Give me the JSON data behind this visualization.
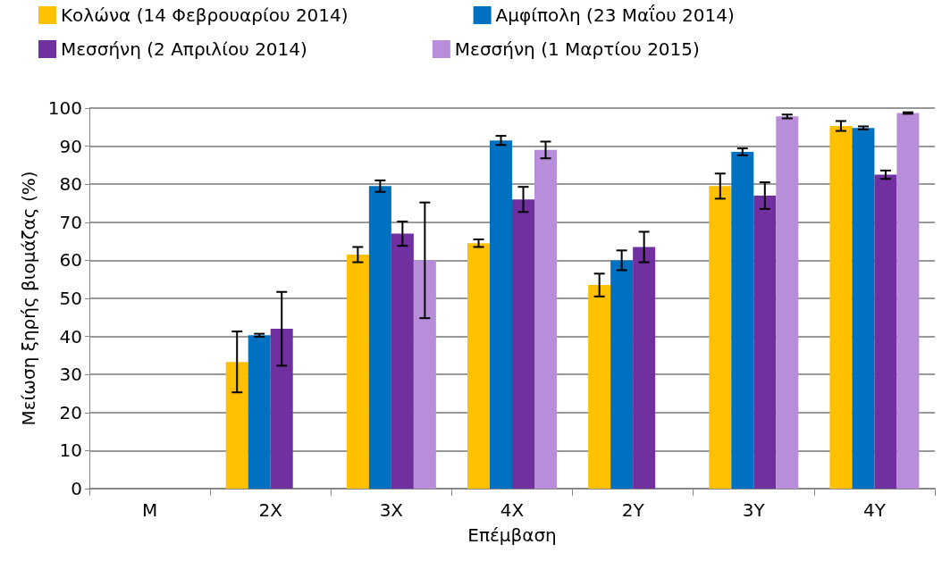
{
  "chart_data": {
    "type": "bar",
    "xlabel": "Επέμβαση",
    "ylabel": "Μείωση ξηρής βιομάζας (%)",
    "categories": [
      "M",
      "2X",
      "3X",
      "4X",
      "2Y",
      "3Y",
      "4Y"
    ],
    "series": [
      {
        "name": "Κολώνα (14 Φεβρουαρίου 2014)",
        "color": "#ffc000",
        "values": [
          null,
          33.3,
          61.5,
          64.5,
          53.5,
          79.5,
          95.3
        ],
        "errors": [
          null,
          8,
          2,
          1,
          3,
          3.3,
          1.3
        ]
      },
      {
        "name": "Αμφίπολη (23 Μαΐου 2014)",
        "color": "#0070c0",
        "values": [
          null,
          40.3,
          79.5,
          91.5,
          60,
          88.5,
          94.8
        ],
        "errors": [
          null,
          0.4,
          1.5,
          1.2,
          2.6,
          0.9,
          0.4
        ]
      },
      {
        "name": "Μεσσήνη (2 Απριλίου 2014)",
        "color": "#7030a0",
        "values": [
          null,
          42,
          67,
          76,
          63.5,
          77,
          82.5
        ],
        "errors": [
          null,
          9.7,
          3.2,
          3.3,
          4,
          3.5,
          1.1
        ]
      },
      {
        "name": "Μεσσήνη (1 Μαρτίου 2015)",
        "color": "#b88dda",
        "values": [
          null,
          null,
          60,
          89,
          null,
          97.8,
          98.7
        ],
        "errors": [
          null,
          null,
          15.2,
          2.2,
          null,
          0.5,
          0.2
        ]
      }
    ],
    "ylim": [
      0,
      100
    ],
    "yticks": [
      0,
      10,
      20,
      30,
      40,
      50,
      60,
      70,
      80,
      90,
      100
    ],
    "grid": "y",
    "legend": "top"
  }
}
